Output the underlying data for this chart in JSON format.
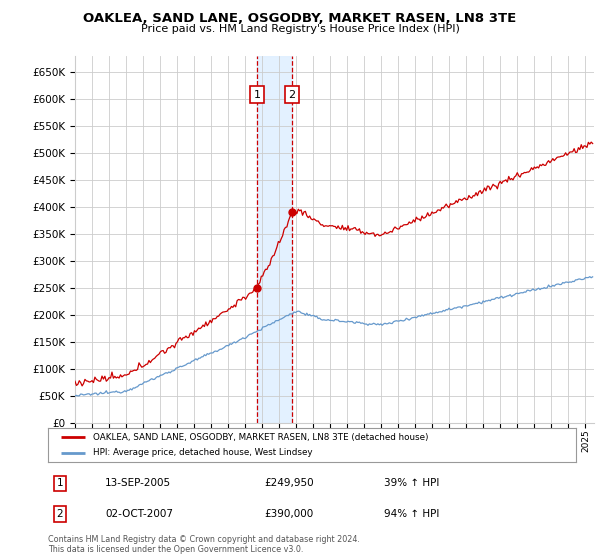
{
  "title": "OAKLEA, SAND LANE, OSGODBY, MARKET RASEN, LN8 3TE",
  "subtitle": "Price paid vs. HM Land Registry's House Price Index (HPI)",
  "ylabel_ticks": [
    "£0",
    "£50K",
    "£100K",
    "£150K",
    "£200K",
    "£250K",
    "£300K",
    "£350K",
    "£400K",
    "£450K",
    "£500K",
    "£550K",
    "£600K",
    "£650K"
  ],
  "ytick_values": [
    0,
    50000,
    100000,
    150000,
    200000,
    250000,
    300000,
    350000,
    400000,
    450000,
    500000,
    550000,
    600000,
    650000
  ],
  "xmin": 1995.0,
  "xmax": 2025.5,
  "ymin": 0,
  "ymax": 680000,
  "transaction1_date": 2005.7,
  "transaction1_price": 249950,
  "transaction1_label": "1",
  "transaction2_date": 2007.75,
  "transaction2_price": 390000,
  "transaction2_label": "2",
  "legend_line1": "OAKLEA, SAND LANE, OSGODBY, MARKET RASEN, LN8 3TE (detached house)",
  "legend_line2": "HPI: Average price, detached house, West Lindsey",
  "table_row1": [
    "1",
    "13-SEP-2005",
    "£249,950",
    "39% ↑ HPI"
  ],
  "table_row2": [
    "2",
    "02-OCT-2007",
    "£390,000",
    "94% ↑ HPI"
  ],
  "footer1": "Contains HM Land Registry data © Crown copyright and database right 2024.",
  "footer2": "This data is licensed under the Open Government Licence v3.0.",
  "red_color": "#cc0000",
  "blue_color": "#6699cc",
  "grid_color": "#cccccc",
  "background_color": "#ffffff",
  "highlight_color": "#ddeeff"
}
